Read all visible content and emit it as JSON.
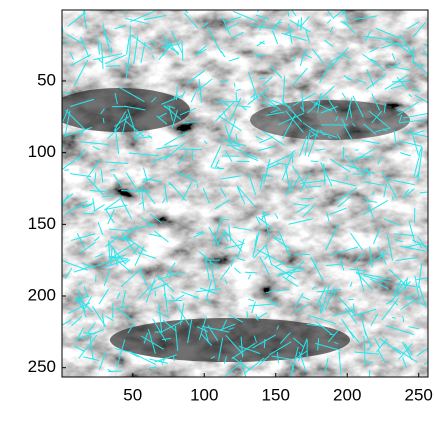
{
  "chart_data": {
    "type": "image",
    "xlim": [
      0.5,
      256.5
    ],
    "ylim": [
      0.5,
      256.5
    ],
    "y_reversed": true,
    "xticks": [
      50,
      100,
      150,
      200,
      250
    ],
    "yticks": [
      50,
      100,
      150,
      200,
      250
    ]
  }
}
